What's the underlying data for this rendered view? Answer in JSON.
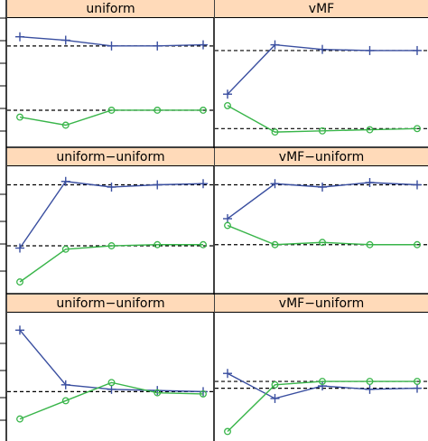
{
  "colors": {
    "strip": "#ffdab9",
    "series_plus": "#3a4fa0",
    "series_circle": "#39b54a",
    "reference": "#000000"
  },
  "chart_data": [
    {
      "type": "line",
      "title": "uniform",
      "panel": "top-left",
      "x": [
        1,
        2,
        3,
        4,
        5
      ],
      "ylim": [
        0,
        1
      ],
      "reference_lines": [
        0.82,
        0.26
      ],
      "series": [
        {
          "marker": "plus",
          "values": [
            0.9,
            0.87,
            0.82,
            0.82,
            0.83
          ]
        },
        {
          "marker": "circle",
          "values": [
            0.2,
            0.13,
            0.26,
            0.26,
            0.26
          ]
        }
      ]
    },
    {
      "type": "line",
      "title": "vMF",
      "panel": "top-right",
      "x": [
        1,
        2,
        3,
        4,
        5
      ],
      "ylim": [
        0,
        1
      ],
      "reference_lines": [
        0.78,
        0.1
      ],
      "series": [
        {
          "marker": "plus",
          "values": [
            0.4,
            0.83,
            0.79,
            0.78,
            0.78
          ]
        },
        {
          "marker": "circle",
          "values": [
            0.3,
            0.07,
            0.08,
            0.09,
            0.1
          ]
        }
      ]
    },
    {
      "type": "line",
      "title": "uniform−uniform",
      "panel": "middle-left",
      "x": [
        1,
        2,
        3,
        4,
        5
      ],
      "ylim": [
        0,
        1
      ],
      "reference_lines": [
        0.9,
        0.36
      ],
      "series": [
        {
          "marker": "plus",
          "values": [
            0.34,
            0.93,
            0.88,
            0.9,
            0.91
          ]
        },
        {
          "marker": "circle",
          "values": [
            0.04,
            0.33,
            0.36,
            0.37,
            0.37
          ]
        }
      ]
    },
    {
      "type": "line",
      "title": "vMF−uniform",
      "panel": "middle-right",
      "x": [
        1,
        2,
        3,
        4,
        5
      ],
      "ylim": [
        0,
        1
      ],
      "reference_lines": [
        0.9,
        0.37
      ],
      "series": [
        {
          "marker": "plus",
          "values": [
            0.6,
            0.91,
            0.88,
            0.92,
            0.9
          ]
        },
        {
          "marker": "circle",
          "values": [
            0.54,
            0.37,
            0.39,
            0.37,
            0.37
          ]
        }
      ]
    },
    {
      "type": "line",
      "title": "uniform−uniform",
      "panel": "bottom-left",
      "x": [
        1,
        2,
        3,
        4,
        5
      ],
      "ylim": [
        0,
        1
      ],
      "reference_lines": [
        0.37
      ],
      "series": [
        {
          "marker": "plus",
          "values": [
            0.91,
            0.43,
            0.39,
            0.38,
            0.37
          ]
        },
        {
          "marker": "circle",
          "values": [
            0.13,
            0.29,
            0.45,
            0.36,
            0.35
          ]
        }
      ]
    },
    {
      "type": "line",
      "title": "vMF−uniform",
      "panel": "bottom-right",
      "x": [
        1,
        2,
        3,
        4,
        5
      ],
      "ylim": [
        0,
        1
      ],
      "reference_lines": [
        0.46,
        0.4
      ],
      "series": [
        {
          "marker": "plus",
          "values": [
            0.53,
            0.31,
            0.42,
            0.39,
            0.4
          ]
        },
        {
          "marker": "circle",
          "values": [
            0.02,
            0.43,
            0.46,
            0.46,
            0.46
          ]
        }
      ]
    }
  ]
}
